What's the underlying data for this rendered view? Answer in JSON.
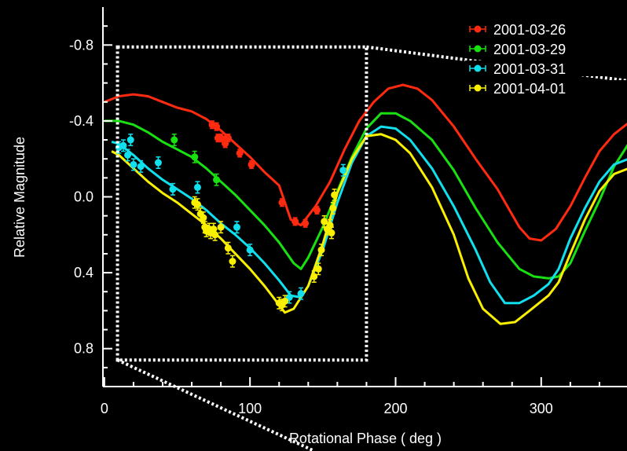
{
  "chart_data": {
    "type": "scatter",
    "title": "",
    "xlabel": "Rotational Phase ( deg )",
    "ylabel": "Relative Magnitude",
    "xlim": [
      -1,
      360
    ],
    "ylim": [
      1.0,
      -1.0
    ],
    "y_inverted": true,
    "x_ticks": [
      0,
      100,
      200,
      300
    ],
    "x_tick_labels": [
      "0",
      "100",
      "200",
      "300"
    ],
    "y_ticks": [
      -0.8,
      -0.4,
      0.0,
      0.4,
      0.8
    ],
    "y_tick_labels": [
      "-0.8",
      "-0.4",
      "0.0",
      "0.4",
      "0.8"
    ],
    "grid": false,
    "legend_position": "top-right",
    "background_color": "#000000",
    "axis_color": "#ffffff",
    "zoom_box": {
      "x_range": [
        9,
        180
      ],
      "y_range": [
        -0.79,
        0.86
      ],
      "style": "dotted",
      "color": "#ffffff"
    },
    "series": [
      {
        "name": "2001-03-26",
        "color": "#ff2a10",
        "points": [
          [
            74,
            -0.38
          ],
          [
            77,
            -0.37
          ],
          [
            78,
            -0.31
          ],
          [
            80,
            -0.31
          ],
          [
            82,
            -0.3
          ],
          [
            83,
            -0.28
          ],
          [
            85,
            -0.31
          ],
          [
            93,
            -0.23
          ],
          [
            101,
            -0.17
          ],
          [
            122,
            0.03
          ],
          [
            131,
            0.13
          ],
          [
            138,
            0.14
          ],
          [
            146,
            0.07
          ]
        ],
        "error": 0.02,
        "model": [
          [
            0,
            -0.5
          ],
          [
            10,
            -0.53
          ],
          [
            20,
            -0.54
          ],
          [
            30,
            -0.53
          ],
          [
            40,
            -0.5
          ],
          [
            50,
            -0.47
          ],
          [
            60,
            -0.45
          ],
          [
            70,
            -0.41
          ],
          [
            80,
            -0.35
          ],
          [
            90,
            -0.28
          ],
          [
            100,
            -0.21
          ],
          [
            110,
            -0.13
          ],
          [
            120,
            -0.06
          ],
          [
            128,
            0.12
          ],
          [
            135,
            0.15
          ],
          [
            145,
            0.05
          ],
          [
            155,
            -0.08
          ],
          [
            165,
            -0.25
          ],
          [
            175,
            -0.4
          ],
          [
            185,
            -0.5
          ],
          [
            195,
            -0.57
          ],
          [
            205,
            -0.59
          ],
          [
            215,
            -0.57
          ],
          [
            225,
            -0.51
          ],
          [
            240,
            -0.37
          ],
          [
            255,
            -0.2
          ],
          [
            270,
            -0.04
          ],
          [
            285,
            0.16
          ],
          [
            292,
            0.22
          ],
          [
            300,
            0.23
          ],
          [
            310,
            0.17
          ],
          [
            320,
            0.05
          ],
          [
            330,
            -0.1
          ],
          [
            340,
            -0.24
          ],
          [
            350,
            -0.33
          ],
          [
            360,
            -0.39
          ]
        ]
      },
      {
        "name": "2001-03-29",
        "color": "#19e010",
        "points": [
          [
            48,
            -0.3
          ],
          [
            62,
            -0.21
          ],
          [
            77,
            -0.09
          ]
        ],
        "error": 0.03,
        "model": [
          [
            0,
            -0.4
          ],
          [
            10,
            -0.4
          ],
          [
            20,
            -0.38
          ],
          [
            30,
            -0.34
          ],
          [
            40,
            -0.29
          ],
          [
            50,
            -0.25
          ],
          [
            60,
            -0.21
          ],
          [
            70,
            -0.15
          ],
          [
            80,
            -0.08
          ],
          [
            90,
            -0.01
          ],
          [
            100,
            0.07
          ],
          [
            110,
            0.15
          ],
          [
            120,
            0.24
          ],
          [
            130,
            0.35
          ],
          [
            135,
            0.38
          ],
          [
            140,
            0.32
          ],
          [
            150,
            0.16
          ],
          [
            160,
            -0.03
          ],
          [
            170,
            -0.21
          ],
          [
            180,
            -0.36
          ],
          [
            190,
            -0.44
          ],
          [
            200,
            -0.44
          ],
          [
            210,
            -0.4
          ],
          [
            225,
            -0.3
          ],
          [
            240,
            -0.14
          ],
          [
            255,
            0.06
          ],
          [
            270,
            0.24
          ],
          [
            285,
            0.38
          ],
          [
            295,
            0.42
          ],
          [
            305,
            0.43
          ],
          [
            312,
            0.42
          ],
          [
            320,
            0.35
          ],
          [
            330,
            0.18
          ],
          [
            340,
            0.02
          ],
          [
            350,
            -0.16
          ],
          [
            360,
            -0.28
          ]
        ]
      },
      {
        "name": "2001-03-31",
        "color": "#10e0ee",
        "points": [
          [
            10,
            -0.26
          ],
          [
            13,
            -0.27
          ],
          [
            16,
            -0.22
          ],
          [
            18,
            -0.3
          ],
          [
            20,
            -0.17
          ],
          [
            25,
            -0.16
          ],
          [
            37,
            -0.18
          ],
          [
            47,
            -0.04
          ],
          [
            64,
            -0.05
          ],
          [
            91,
            0.16
          ],
          [
            100,
            0.28
          ],
          [
            127,
            0.53
          ],
          [
            135,
            0.51
          ],
          [
            164,
            -0.14
          ]
        ],
        "error": 0.03,
        "model": [
          [
            5,
            -0.29
          ],
          [
            10,
            -0.28
          ],
          [
            20,
            -0.22
          ],
          [
            30,
            -0.15
          ],
          [
            40,
            -0.09
          ],
          [
            50,
            -0.04
          ],
          [
            60,
            0.01
          ],
          [
            70,
            0.07
          ],
          [
            80,
            0.14
          ],
          [
            90,
            0.2
          ],
          [
            100,
            0.27
          ],
          [
            110,
            0.35
          ],
          [
            120,
            0.44
          ],
          [
            128,
            0.52
          ],
          [
            135,
            0.53
          ],
          [
            140,
            0.47
          ],
          [
            150,
            0.28
          ],
          [
            160,
            0.03
          ],
          [
            170,
            -0.18
          ],
          [
            180,
            -0.32
          ],
          [
            190,
            -0.37
          ],
          [
            200,
            -0.36
          ],
          [
            210,
            -0.3
          ],
          [
            225,
            -0.15
          ],
          [
            240,
            0.05
          ],
          [
            255,
            0.28
          ],
          [
            265,
            0.45
          ],
          [
            275,
            0.56
          ],
          [
            285,
            0.56
          ],
          [
            295,
            0.52
          ],
          [
            305,
            0.46
          ],
          [
            312,
            0.38
          ],
          [
            320,
            0.22
          ],
          [
            330,
            0.06
          ],
          [
            340,
            -0.08
          ],
          [
            350,
            -0.17
          ],
          [
            360,
            -0.2
          ]
        ]
      },
      {
        "name": "2001-04-01",
        "color": "#f8f000",
        "points": [
          [
            62,
            0.03
          ],
          [
            64,
            0.04
          ],
          [
            66,
            0.09
          ],
          [
            68,
            0.11
          ],
          [
            69,
            0.16
          ],
          [
            70,
            0.18
          ],
          [
            72,
            0.17
          ],
          [
            73,
            0.19
          ],
          [
            75,
            0.17
          ],
          [
            76,
            0.2
          ],
          [
            80,
            0.16
          ],
          [
            85,
            0.27
          ],
          [
            88,
            0.34
          ],
          [
            120,
            0.56
          ],
          [
            122,
            0.57
          ],
          [
            124,
            0.55
          ],
          [
            144,
            0.42
          ],
          [
            147,
            0.38
          ],
          [
            149,
            0.28
          ],
          [
            151,
            0.13
          ],
          [
            153,
            0.17
          ],
          [
            155,
            0.15
          ],
          [
            156,
            0.19
          ],
          [
            157,
            0.06
          ],
          [
            158,
            -0.01
          ]
        ],
        "error": 0.03,
        "model": [
          [
            5,
            -0.24
          ],
          [
            10,
            -0.22
          ],
          [
            20,
            -0.15
          ],
          [
            30,
            -0.08
          ],
          [
            40,
            -0.02
          ],
          [
            50,
            0.03
          ],
          [
            60,
            0.09
          ],
          [
            70,
            0.15
          ],
          [
            80,
            0.22
          ],
          [
            90,
            0.3
          ],
          [
            100,
            0.38
          ],
          [
            110,
            0.47
          ],
          [
            118,
            0.55
          ],
          [
            124,
            0.61
          ],
          [
            130,
            0.59
          ],
          [
            140,
            0.47
          ],
          [
            150,
            0.25
          ],
          [
            160,
            -0.02
          ],
          [
            170,
            -0.2
          ],
          [
            180,
            -0.32
          ],
          [
            190,
            -0.33
          ],
          [
            200,
            -0.3
          ],
          [
            210,
            -0.23
          ],
          [
            225,
            -0.05
          ],
          [
            240,
            0.2
          ],
          [
            250,
            0.43
          ],
          [
            260,
            0.59
          ],
          [
            272,
            0.67
          ],
          [
            282,
            0.66
          ],
          [
            292,
            0.6
          ],
          [
            305,
            0.52
          ],
          [
            312,
            0.45
          ],
          [
            320,
            0.3
          ],
          [
            330,
            0.12
          ],
          [
            340,
            -0.03
          ],
          [
            350,
            -0.12
          ],
          [
            360,
            -0.15
          ]
        ]
      }
    ]
  }
}
